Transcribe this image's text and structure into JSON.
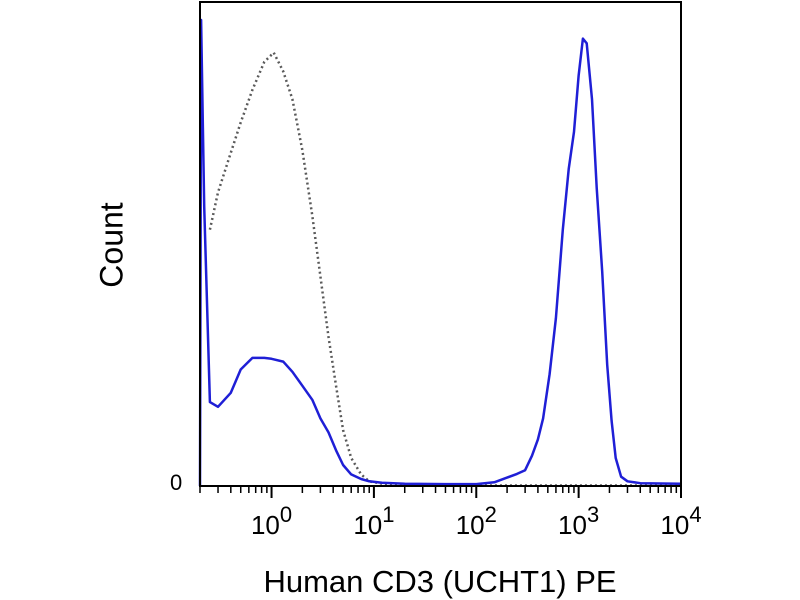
{
  "chart_data": {
    "type": "line",
    "title": "",
    "xlabel": "Human CD3 (UCHT1) PE",
    "ylabel": "Count",
    "x_scale": "log",
    "xlim": [
      0.2,
      10000
    ],
    "ylim": [
      0,
      100
    ],
    "x_ticks": [
      {
        "base": "10",
        "exp": "0",
        "value": 1
      },
      {
        "base": "10",
        "exp": "1",
        "value": 10
      },
      {
        "base": "10",
        "exp": "2",
        "value": 100
      },
      {
        "base": "10",
        "exp": "3",
        "value": 1000
      },
      {
        "base": "10",
        "exp": "4",
        "value": 10000
      }
    ],
    "y_tick_label": "0",
    "grid": false,
    "series": [
      {
        "color": "#5a5a5a",
        "style": "dotted",
        "points": [
          [
            0.25,
            55
          ],
          [
            0.3,
            63
          ],
          [
            0.38,
            70
          ],
          [
            0.5,
            78
          ],
          [
            0.65,
            85
          ],
          [
            0.85,
            91
          ],
          [
            1.05,
            93
          ],
          [
            1.3,
            89
          ],
          [
            1.6,
            83
          ],
          [
            2.0,
            72
          ],
          [
            2.5,
            58
          ],
          [
            3.0,
            45
          ],
          [
            3.6,
            32
          ],
          [
            4.3,
            21
          ],
          [
            5.0,
            12
          ],
          [
            6.0,
            6
          ],
          [
            7.5,
            2.5
          ],
          [
            9,
            1
          ],
          [
            12,
            0.5
          ],
          [
            20,
            0.2
          ],
          [
            100,
            0.1
          ],
          [
            1000,
            0.1
          ],
          [
            10000,
            0.1
          ]
        ]
      },
      {
        "color": "#1f1fd6",
        "style": "solid",
        "points": [
          [
            0.2,
            0
          ],
          [
            0.205,
            100
          ],
          [
            0.22,
            60
          ],
          [
            0.25,
            18
          ],
          [
            0.3,
            17
          ],
          [
            0.4,
            20
          ],
          [
            0.5,
            25
          ],
          [
            0.65,
            27.5
          ],
          [
            0.85,
            27.5
          ],
          [
            1.0,
            27.3
          ],
          [
            1.3,
            26.7
          ],
          [
            1.6,
            24.5
          ],
          [
            2.0,
            21.5
          ],
          [
            2.5,
            18.5
          ],
          [
            3.0,
            14.5
          ],
          [
            3.6,
            11.5
          ],
          [
            4.3,
            7.5
          ],
          [
            5.0,
            4.5
          ],
          [
            6.0,
            2.5
          ],
          [
            7.5,
            1.5
          ],
          [
            9,
            1
          ],
          [
            12,
            0.7
          ],
          [
            20,
            0.5
          ],
          [
            50,
            0.4
          ],
          [
            100,
            0.4
          ],
          [
            150,
            0.8
          ],
          [
            200,
            1.8
          ],
          [
            250,
            2.6
          ],
          [
            300,
            3.4
          ],
          [
            350,
            6.5
          ],
          [
            400,
            10
          ],
          [
            450,
            14.5
          ],
          [
            520,
            24
          ],
          [
            600,
            36
          ],
          [
            700,
            55
          ],
          [
            800,
            68
          ],
          [
            900,
            76
          ],
          [
            1000,
            88
          ],
          [
            1100,
            96
          ],
          [
            1200,
            95
          ],
          [
            1350,
            83
          ],
          [
            1500,
            64
          ],
          [
            1700,
            46
          ],
          [
            1900,
            26
          ],
          [
            2100,
            14
          ],
          [
            2300,
            6
          ],
          [
            2600,
            2
          ],
          [
            3000,
            1
          ],
          [
            4000,
            0.6
          ],
          [
            10000,
            0.5
          ]
        ]
      }
    ]
  }
}
